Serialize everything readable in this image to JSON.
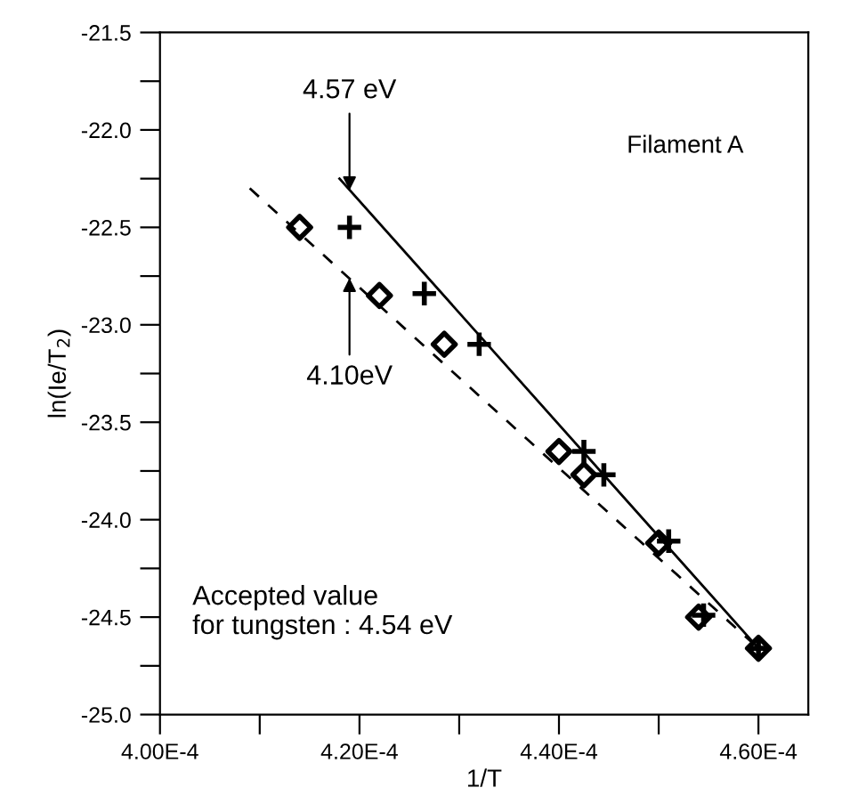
{
  "chart_data": {
    "type": "scatter",
    "xlabel": "1/T",
    "ylabel": "ln(Ie/T$_{2}$)",
    "xlim": [
      0.0004,
      0.000465
    ],
    "ylim": [
      -25.0,
      -21.5
    ],
    "xticks": [
      {
        "value": 0.0004,
        "label": "4.00E-4"
      },
      {
        "value": 0.00041,
        "label": null
      },
      {
        "value": 0.00042,
        "label": "4.20E-4"
      },
      {
        "value": 0.00043,
        "label": null
      },
      {
        "value": 0.00044,
        "label": "4.40E-4"
      },
      {
        "value": 0.00045,
        "label": null
      },
      {
        "value": 0.00046,
        "label": "4.60E-4"
      }
    ],
    "yticks": [
      {
        "value": -25.0,
        "label": "-25.0"
      },
      {
        "value": -24.75,
        "label": null
      },
      {
        "value": -24.5,
        "label": "-24.5"
      },
      {
        "value": -24.25,
        "label": null
      },
      {
        "value": -24.0,
        "label": "-24.0"
      },
      {
        "value": -23.75,
        "label": null
      },
      {
        "value": -23.5,
        "label": "-23.5"
      },
      {
        "value": -23.25,
        "label": null
      },
      {
        "value": -23.0,
        "label": "-23.0"
      },
      {
        "value": -22.75,
        "label": null
      },
      {
        "value": -22.5,
        "label": "-22.5"
      },
      {
        "value": -22.25,
        "label": null
      },
      {
        "value": -22.0,
        "label": "-22.0"
      },
      {
        "value": -21.75,
        "label": null
      },
      {
        "value": -21.5,
        "label": "-21.5"
      }
    ],
    "grid": false,
    "legend": false,
    "series": [
      {
        "marker": "diamond",
        "color": "#000000",
        "x": [
          0.000414,
          0.000422,
          0.0004285,
          0.00044,
          0.0004425,
          0.00045,
          0.000454,
          0.00046
        ],
        "values": [
          -22.5,
          -22.85,
          -23.1,
          -23.65,
          -23.77,
          -24.12,
          -24.5,
          -24.66
        ]
      },
      {
        "marker": "cross",
        "color": "#000000",
        "x": [
          0.000419,
          0.0004265,
          0.000432,
          0.0004425,
          0.0004445,
          0.000451,
          0.0004545,
          0.00046
        ],
        "values": [
          -22.5,
          -22.84,
          -23.1,
          -23.65,
          -23.77,
          -24.11,
          -24.49,
          -24.66
        ]
      },
      {
        "type": "line",
        "line_style": "solid",
        "marker": "none",
        "color": "#000000",
        "x": [
          0.000418,
          0.00046
        ],
        "values": [
          -22.25,
          -24.66
        ]
      },
      {
        "type": "line",
        "line_style": "dashed",
        "marker": "none",
        "color": "#000000",
        "x": [
          0.000409,
          0.00046
        ],
        "values": [
          -22.3,
          -24.66
        ]
      }
    ],
    "annotations": [
      {
        "text": "4.57 eV",
        "x": 0.000419,
        "y": -22.31
      },
      {
        "text": "4.10eV",
        "x": 0.000419,
        "y": -22.76
      },
      "Filament A",
      "Accepted value\nfor tungsten : 4.54 eV"
    ]
  }
}
